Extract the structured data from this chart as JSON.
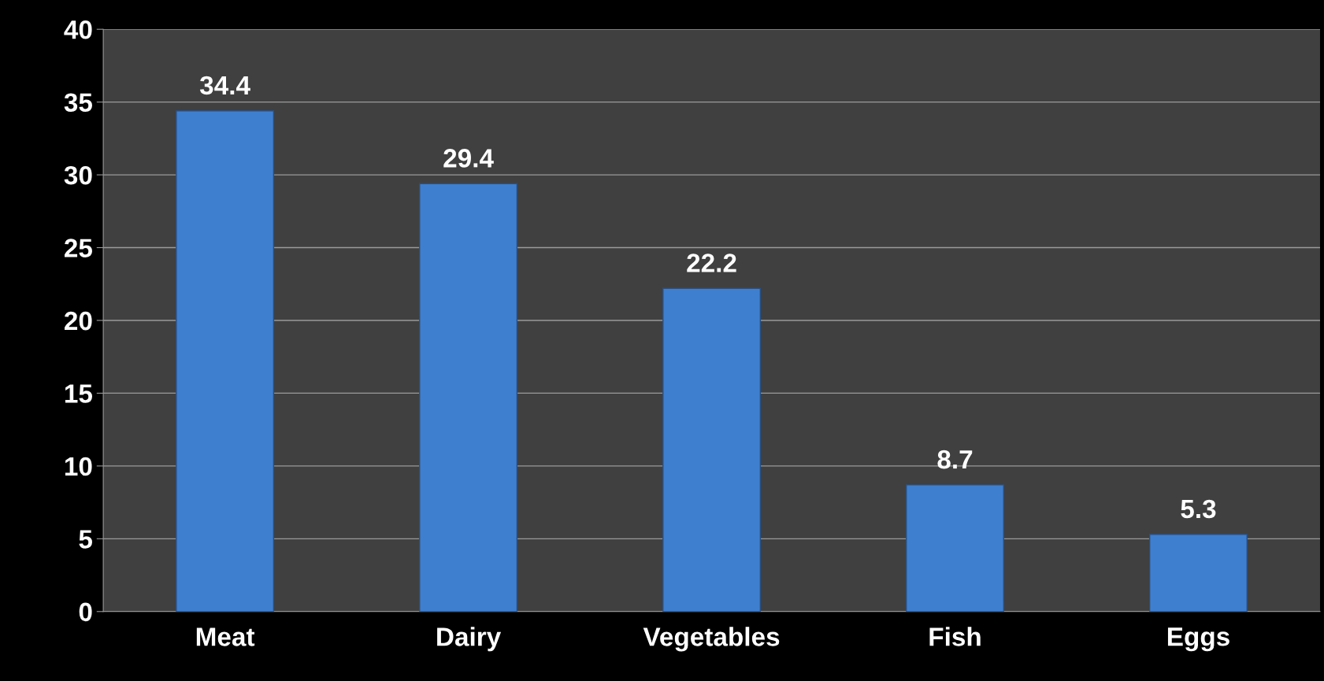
{
  "chart_data": {
    "type": "bar",
    "categories": [
      "Meat",
      "Dairy",
      "Vegetables",
      "Fish",
      "Eggs"
    ],
    "values": [
      34.4,
      29.4,
      22.2,
      8.7,
      5.3
    ],
    "color": "#3f7fcf",
    "ylim": [
      0,
      40
    ],
    "yticks": [
      0,
      5,
      10,
      15,
      20,
      25,
      30,
      35,
      40
    ],
    "grid": "y",
    "data_labels": true
  }
}
